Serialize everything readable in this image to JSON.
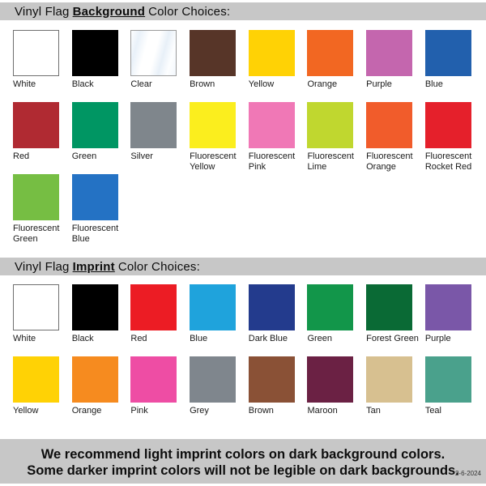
{
  "background_section": {
    "title_prefix": "Vinyl Flag",
    "title_emphasis": "Background",
    "title_suffix": "Color Choices:",
    "swatches": [
      {
        "label": "White",
        "color": "#ffffff",
        "style": "white-bordered"
      },
      {
        "label": "Black",
        "color": "#000000",
        "style": "solid"
      },
      {
        "label": "Clear",
        "color": "#f4f8fc",
        "style": "clear"
      },
      {
        "label": "Brown",
        "color": "#573528",
        "style": "solid"
      },
      {
        "label": "Yellow",
        "color": "#ffd205",
        "style": "solid"
      },
      {
        "label": "Orange",
        "color": "#f26722",
        "style": "solid"
      },
      {
        "label": "Purple",
        "color": "#c466ae",
        "style": "solid"
      },
      {
        "label": "Blue",
        "color": "#2260ad",
        "style": "solid"
      },
      {
        "label": "Red",
        "color": "#b02a32",
        "style": "solid"
      },
      {
        "label": "Green",
        "color": "#009663",
        "style": "solid"
      },
      {
        "label": "Silver",
        "color": "#7f868c",
        "style": "solid"
      },
      {
        "label": "Fluorescent Yellow",
        "color": "#fbee1e",
        "style": "solid"
      },
      {
        "label": "Fluorescent Pink",
        "color": "#f078b6",
        "style": "solid"
      },
      {
        "label": "Fluorescent Lime",
        "color": "#c0d72f",
        "style": "solid"
      },
      {
        "label": "Fluorescent Orange",
        "color": "#f15c2b",
        "style": "solid"
      },
      {
        "label": "Fluorescent Rocket Red",
        "color": "#e5202b",
        "style": "solid"
      },
      {
        "label": "Fluorescent Green",
        "color": "#76be43",
        "style": "solid"
      },
      {
        "label": "Fluorescent Blue",
        "color": "#2472c4",
        "style": "solid"
      }
    ]
  },
  "imprint_section": {
    "title_prefix": "Vinyl Flag",
    "title_emphasis": "Imprint",
    "title_suffix": "Color Choices:",
    "swatches": [
      {
        "label": "White",
        "color": "#ffffff",
        "style": "white-bordered"
      },
      {
        "label": "Black",
        "color": "#000000",
        "style": "solid"
      },
      {
        "label": "Red",
        "color": "#ec1c24",
        "style": "solid"
      },
      {
        "label": "Blue",
        "color": "#1fa3dc",
        "style": "solid"
      },
      {
        "label": "Dark Blue",
        "color": "#233b8d",
        "style": "solid"
      },
      {
        "label": "Green",
        "color": "#12964a",
        "style": "solid"
      },
      {
        "label": "Forest Green",
        "color": "#0a6a35",
        "style": "solid"
      },
      {
        "label": "Purple",
        "color": "#7a57a8",
        "style": "solid"
      },
      {
        "label": "Yellow",
        "color": "#ffd205",
        "style": "solid"
      },
      {
        "label": "Orange",
        "color": "#f68b1f",
        "style": "solid"
      },
      {
        "label": "Pink",
        "color": "#ee4da4",
        "style": "solid"
      },
      {
        "label": "Grey",
        "color": "#7f868d",
        "style": "solid"
      },
      {
        "label": "Brown",
        "color": "#8a5136",
        "style": "solid"
      },
      {
        "label": "Maroon",
        "color": "#6b2144",
        "style": "solid"
      },
      {
        "label": "Tan",
        "color": "#d7c090",
        "style": "solid"
      },
      {
        "label": "Teal",
        "color": "#4aa18c",
        "style": "solid"
      }
    ]
  },
  "footer": {
    "line1": "We recommend light imprint colors on dark background colors.",
    "line2": "Some darker imprint colors will not be legible on dark backgrounds.",
    "date": "2-6-2024"
  }
}
